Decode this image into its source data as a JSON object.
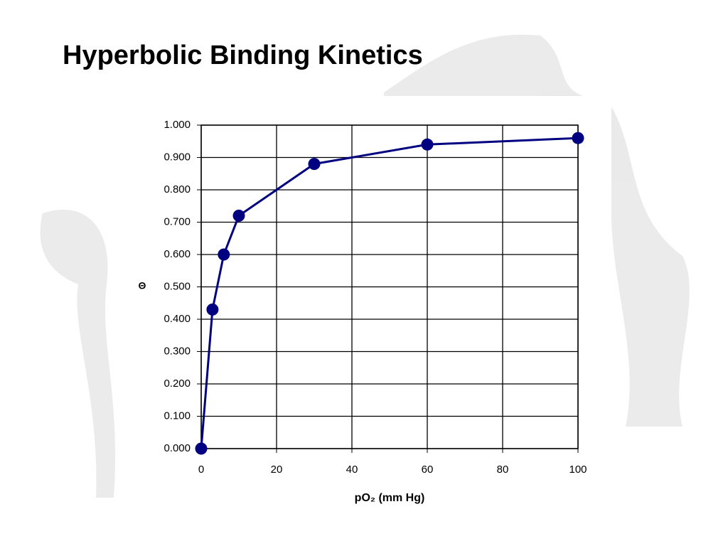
{
  "chart_data": {
    "type": "line",
    "title": "Hyperbolic Binding Kinetics",
    "x_label": "pO₂ (mm Hg)",
    "y_label": "Θ",
    "x": [
      0,
      3,
      6,
      10,
      30,
      60,
      100
    ],
    "values": [
      0,
      0.43,
      0.6,
      0.72,
      0.88,
      0.94,
      0.96
    ],
    "color": "#000080",
    "xlim": [
      0,
      100
    ],
    "xticks": [
      0,
      20,
      40,
      60,
      80,
      100
    ],
    "ylim": [
      0,
      1
    ],
    "yticks": [
      {
        "value": 0,
        "label": "0.000"
      },
      {
        "value": 0.1,
        "label": "0.100"
      },
      {
        "value": 0.2,
        "label": "0.200"
      },
      {
        "value": 0.3,
        "label": "0.300"
      },
      {
        "value": 0.4,
        "label": "0.400"
      },
      {
        "value": 0.5,
        "label": "0.500"
      },
      {
        "value": 0.6,
        "label": "0.600"
      },
      {
        "value": 0.7,
        "label": "0.700"
      },
      {
        "value": 0.8,
        "label": "0.800"
      },
      {
        "value": 0.9,
        "label": "0.900"
      },
      {
        "value": 1,
        "label": "1.000"
      }
    ],
    "grid": true
  }
}
